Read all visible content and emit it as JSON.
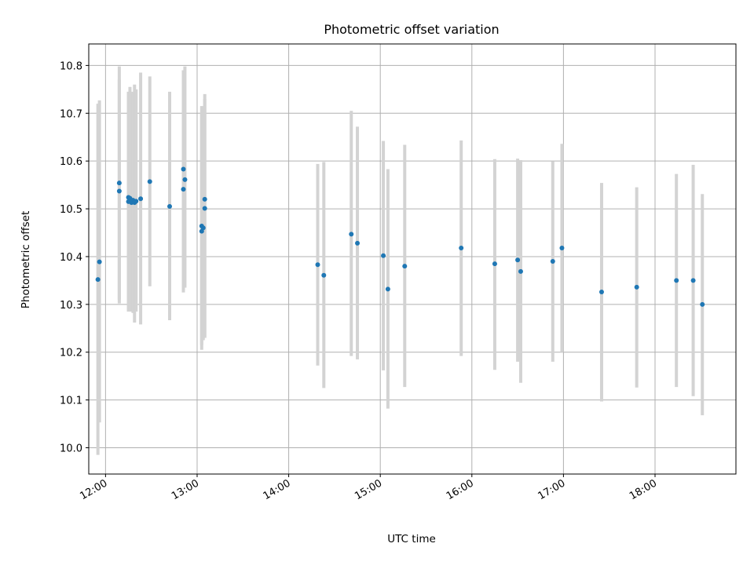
{
  "chart_data": {
    "type": "scatter",
    "title": "Photometric offset variation",
    "xlabel": "UTC time",
    "ylabel": "Photometric offset",
    "xlim": [
      "11:49",
      "18:53"
    ],
    "ylim": [
      9.945,
      10.845
    ],
    "x_ticks": [
      "12:00",
      "13:00",
      "14:00",
      "15:00",
      "16:00",
      "17:00",
      "18:00"
    ],
    "y_ticks": [
      "10.0",
      "10.1",
      "10.2",
      "10.3",
      "10.4",
      "10.5",
      "10.6",
      "10.7",
      "10.8"
    ],
    "grid": true,
    "colors": {
      "points": "#1f77b4",
      "error_bars": "#d3d3d3",
      "grid": "#b0b0b0"
    },
    "series": [
      {
        "points": [
          {
            "x": "11:55",
            "y": 10.352,
            "ylow": 9.985,
            "yhigh": 10.72
          },
          {
            "x": "11:56",
            "y": 10.389,
            "ylow": 10.053,
            "yhigh": 10.727
          },
          {
            "x": "12:09",
            "y": 10.554,
            "ylow": 10.31,
            "yhigh": 10.798
          },
          {
            "x": "12:09",
            "y": 10.537,
            "ylow": 10.302,
            "yhigh": 10.77
          },
          {
            "x": "12:15",
            "y": 10.524,
            "ylow": 10.302,
            "yhigh": 10.73
          },
          {
            "x": "12:15",
            "y": 10.515,
            "ylow": 10.285,
            "yhigh": 10.745
          },
          {
            "x": "12:16",
            "y": 10.522,
            "ylow": 10.29,
            "yhigh": 10.755
          },
          {
            "x": "12:17",
            "y": 10.513,
            "ylow": 10.285,
            "yhigh": 10.74
          },
          {
            "x": "12:18",
            "y": 10.518,
            "ylow": 10.282,
            "yhigh": 10.745
          },
          {
            "x": "12:19",
            "y": 10.513,
            "ylow": 10.262,
            "yhigh": 10.76
          },
          {
            "x": "12:20",
            "y": 10.516,
            "ylow": 10.285,
            "yhigh": 10.75
          },
          {
            "x": "12:23",
            "y": 10.521,
            "ylow": 10.258,
            "yhigh": 10.785
          },
          {
            "x": "12:29",
            "y": 10.557,
            "ylow": 10.338,
            "yhigh": 10.777
          },
          {
            "x": "12:42",
            "y": 10.505,
            "ylow": 10.267,
            "yhigh": 10.745
          },
          {
            "x": "12:51",
            "y": 10.583,
            "ylow": 10.325,
            "yhigh": 10.79
          },
          {
            "x": "12:51",
            "y": 10.541,
            "ylow": 10.33,
            "yhigh": 10.758
          },
          {
            "x": "12:52",
            "y": 10.561,
            "ylow": 10.335,
            "yhigh": 10.798
          },
          {
            "x": "13:03",
            "y": 10.464,
            "ylow": 10.205,
            "yhigh": 10.715
          },
          {
            "x": "13:03",
            "y": 10.453,
            "ylow": 10.215,
            "yhigh": 10.7
          },
          {
            "x": "13:04",
            "y": 10.46,
            "ylow": 10.225,
            "yhigh": 10.71
          },
          {
            "x": "13:05",
            "y": 10.52,
            "ylow": 10.23,
            "yhigh": 10.74
          },
          {
            "x": "13:05",
            "y": 10.501,
            "ylow": 10.23,
            "yhigh": 10.73
          },
          {
            "x": "14:19",
            "y": 10.383,
            "ylow": 10.172,
            "yhigh": 10.594
          },
          {
            "x": "14:23",
            "y": 10.361,
            "ylow": 10.125,
            "yhigh": 10.598
          },
          {
            "x": "14:41",
            "y": 10.447,
            "ylow": 10.192,
            "yhigh": 10.705
          },
          {
            "x": "14:45",
            "y": 10.428,
            "ylow": 10.185,
            "yhigh": 10.672
          },
          {
            "x": "15:02",
            "y": 10.402,
            "ylow": 10.162,
            "yhigh": 10.642
          },
          {
            "x": "15:05",
            "y": 10.332,
            "ylow": 10.082,
            "yhigh": 10.583
          },
          {
            "x": "15:16",
            "y": 10.38,
            "ylow": 10.127,
            "yhigh": 10.634
          },
          {
            "x": "15:53",
            "y": 10.418,
            "ylow": 10.192,
            "yhigh": 10.643
          },
          {
            "x": "16:15",
            "y": 10.385,
            "ylow": 10.163,
            "yhigh": 10.604
          },
          {
            "x": "16:30",
            "y": 10.393,
            "ylow": 10.18,
            "yhigh": 10.605
          },
          {
            "x": "16:32",
            "y": 10.369,
            "ylow": 10.136,
            "yhigh": 10.602
          },
          {
            "x": "16:53",
            "y": 10.39,
            "ylow": 10.18,
            "yhigh": 10.599
          },
          {
            "x": "16:59",
            "y": 10.418,
            "ylow": 10.2,
            "yhigh": 10.636
          },
          {
            "x": "17:25",
            "y": 10.326,
            "ylow": 10.097,
            "yhigh": 10.554
          },
          {
            "x": "17:48",
            "y": 10.336,
            "ylow": 10.126,
            "yhigh": 10.545
          },
          {
            "x": "18:14",
            "y": 10.35,
            "ylow": 10.127,
            "yhigh": 10.573
          },
          {
            "x": "18:25",
            "y": 10.35,
            "ylow": 10.108,
            "yhigh": 10.592
          },
          {
            "x": "18:31",
            "y": 10.3,
            "ylow": 10.068,
            "yhigh": 10.531
          }
        ]
      }
    ]
  }
}
